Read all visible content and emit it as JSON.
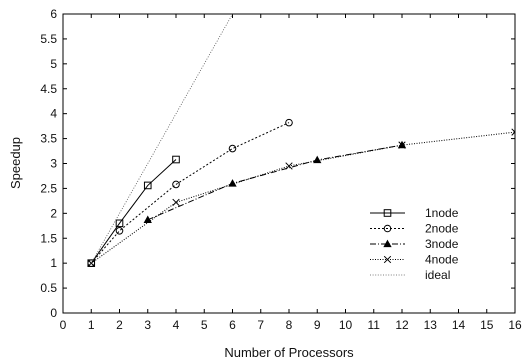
{
  "chart_data": {
    "type": "line",
    "title": "",
    "xlabel": "Number of Processors",
    "ylabel": "Speedup",
    "xlim": [
      0,
      16
    ],
    "ylim": [
      0,
      6
    ],
    "xticks": [
      0,
      1,
      2,
      3,
      4,
      5,
      6,
      7,
      8,
      9,
      10,
      11,
      12,
      13,
      14,
      15,
      16
    ],
    "yticks": [
      0,
      0.5,
      1,
      1.5,
      2,
      2.5,
      3,
      3.5,
      4,
      4.5,
      5,
      5.5,
      6
    ],
    "grid": false,
    "legend_position": "lower-right",
    "series": [
      {
        "name": "1node",
        "marker": "square",
        "dash": "solid",
        "color": "#000000",
        "x": [
          1,
          2,
          3,
          4
        ],
        "y": [
          1.0,
          1.8,
          2.56,
          3.08
        ]
      },
      {
        "name": "2node",
        "marker": "circle",
        "dash": "dotted",
        "color": "#000000",
        "x": [
          1,
          2,
          4,
          6,
          8
        ],
        "y": [
          1.0,
          1.65,
          2.58,
          3.3,
          3.82
        ]
      },
      {
        "name": "3node",
        "marker": "triangle",
        "dash": "dashdot",
        "color": "#000000",
        "x": [
          3,
          6,
          9,
          12
        ],
        "y": [
          1.87,
          2.6,
          3.07,
          3.37
        ]
      },
      {
        "name": "4node",
        "marker": "x",
        "dash": "densedot",
        "color": "#000000",
        "x": [
          1,
          4,
          8,
          12,
          16
        ],
        "y": [
          1.0,
          2.22,
          2.95,
          3.37,
          3.63
        ]
      },
      {
        "name": "ideal",
        "marker": "none",
        "dash": "finedot",
        "color": "#555555",
        "x": [
          1,
          6
        ],
        "y": [
          1,
          6
        ]
      }
    ]
  }
}
